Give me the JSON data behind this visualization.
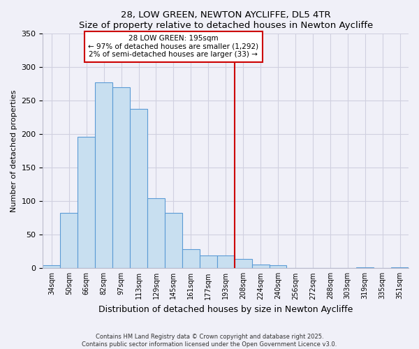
{
  "title": "28, LOW GREEN, NEWTON AYCLIFFE, DL5 4TR",
  "subtitle": "Size of property relative to detached houses in Newton Aycliffe",
  "xlabel": "Distribution of detached houses by size in Newton Aycliffe",
  "ylabel": "Number of detached properties",
  "bar_labels": [
    "34sqm",
    "50sqm",
    "66sqm",
    "82sqm",
    "97sqm",
    "113sqm",
    "129sqm",
    "145sqm",
    "161sqm",
    "177sqm",
    "193sqm",
    "208sqm",
    "224sqm",
    "240sqm",
    "256sqm",
    "272sqm",
    "288sqm",
    "303sqm",
    "319sqm",
    "335sqm",
    "351sqm"
  ],
  "bar_values": [
    5,
    83,
    196,
    277,
    270,
    238,
    104,
    83,
    28,
    19,
    19,
    14,
    6,
    5,
    0,
    0,
    0,
    0,
    1,
    0,
    1
  ],
  "bar_color": "#c8dff0",
  "bar_edge_color": "#5b9bd5",
  "vline_x_index": 11,
  "vline_color": "#cc0000",
  "annotation_title": "28 LOW GREEN: 195sqm",
  "annotation_line1": "← 97% of detached houses are smaller (1,292)",
  "annotation_line2": "2% of semi-detached houses are larger (33) →",
  "annotation_box_color": "white",
  "annotation_box_edge": "#cc0000",
  "ylim": [
    0,
    350
  ],
  "yticks": [
    0,
    50,
    100,
    150,
    200,
    250,
    300,
    350
  ],
  "footer1": "Contains HM Land Registry data © Crown copyright and database right 2025.",
  "footer2": "Contains public sector information licensed under the Open Government Licence v3.0.",
  "bg_color": "#f0f0f8",
  "grid_color": "#d0d0e0"
}
